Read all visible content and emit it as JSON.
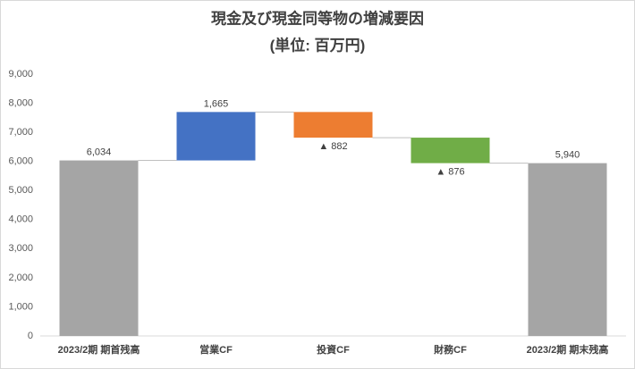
{
  "chart_data": {
    "type": "waterfall",
    "title": "現金及び現金同等物の増減要因",
    "subtitle": "(単位: 百万円)",
    "categories": [
      "2023/2期 期首残高",
      "営業CF",
      "投資CF",
      "財務CF",
      "2023/2期 期末残高"
    ],
    "values": [
      6034,
      1665,
      -882,
      -876,
      5940
    ],
    "value_labels": [
      "6,034",
      "1,665",
      "▲ 882",
      "▲ 876",
      "5,940"
    ],
    "measure": [
      "total",
      "relative",
      "relative",
      "relative",
      "total"
    ],
    "colors": [
      "#a5a5a5",
      "#4472c4",
      "#ed7d31",
      "#70ad47",
      "#a5a5a5"
    ],
    "ylim": [
      0,
      9000
    ],
    "yticks": [
      0,
      {
        "value": 1000,
        "label": "1,000"
      },
      {
        "value": 2000,
        "label": "2,000"
      },
      {
        "value": 3000,
        "label": "3,000"
      },
      {
        "value": 4000,
        "label": "4,000"
      },
      {
        "value": 5000,
        "label": "5,000"
      },
      {
        "value": 6000,
        "label": "6,000"
      },
      {
        "value": 7000,
        "label": "7,000"
      },
      {
        "value": 8000,
        "label": "8,000"
      },
      {
        "value": 9000,
        "label": "9,000"
      }
    ],
    "grid": false
  }
}
